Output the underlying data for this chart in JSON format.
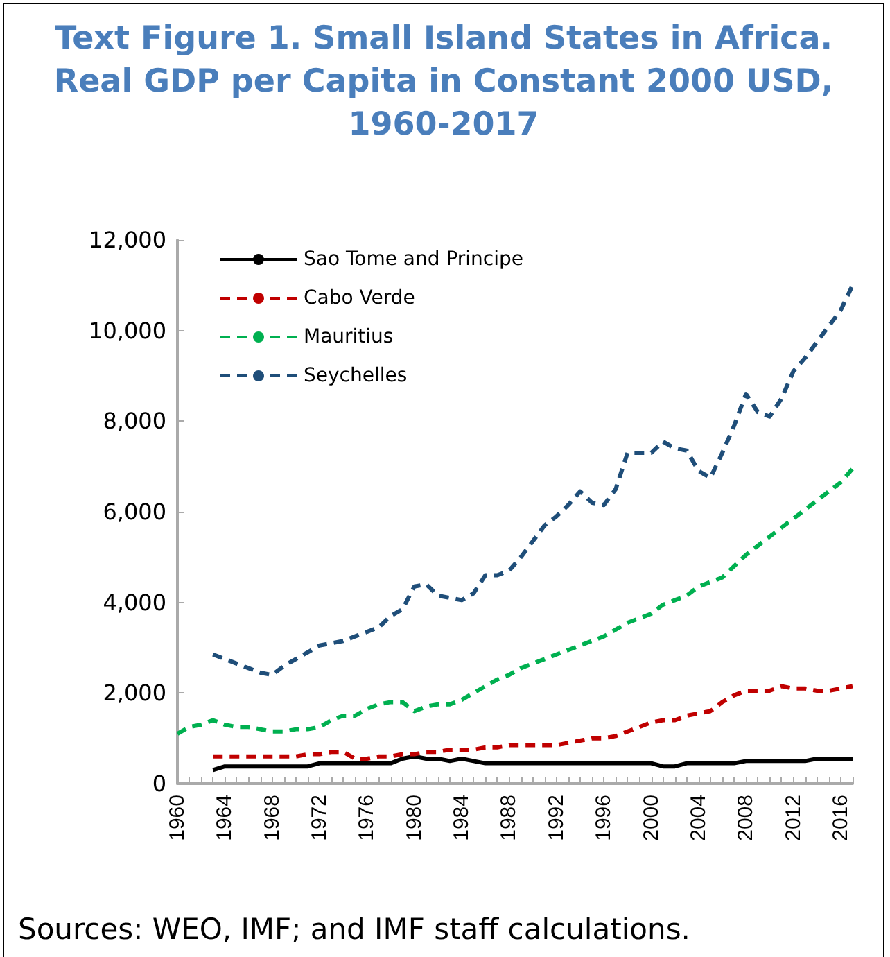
{
  "chart_data": {
    "type": "line",
    "title": "Text Figure 1. Small Island States in Africa. Real GDP per Capita in Constant 2000 USD, 1960-2017",
    "categories": [
      "1960",
      null,
      null,
      null,
      "1964",
      null,
      null,
      null,
      "1968",
      null,
      null,
      null,
      "1972",
      null,
      null,
      null,
      "1976",
      null,
      null,
      null,
      "1980",
      null,
      null,
      null,
      "1984",
      null,
      null,
      null,
      "1988",
      null,
      null,
      null,
      "1992",
      null,
      null,
      null,
      "1996",
      null,
      null,
      null,
      "2000",
      null,
      null,
      null,
      "2004",
      null,
      null,
      null,
      "2008",
      null,
      null,
      null,
      "2012",
      null,
      null,
      null,
      "2016",
      null
    ],
    "series": [
      {
        "name": "Sao Tome and Principe",
        "color": "#000000",
        "line_style": "solid",
        "values": [
          null,
          null,
          null,
          300,
          380,
          380,
          380,
          380,
          380,
          380,
          380,
          380,
          450,
          450,
          450,
          450,
          450,
          450,
          450,
          550,
          600,
          550,
          550,
          500,
          550,
          500,
          450,
          450,
          450,
          450,
          450,
          450,
          450,
          450,
          450,
          450,
          450,
          450,
          450,
          450,
          450,
          380,
          380,
          450,
          450,
          450,
          450,
          450,
          500,
          500,
          500,
          500,
          500,
          500,
          550,
          550,
          550,
          550
        ]
      },
      {
        "name": "Cabo Verde",
        "color": "#c00000",
        "line_style": "dashed",
        "values": [
          null,
          null,
          null,
          600,
          600,
          600,
          600,
          600,
          600,
          600,
          600,
          650,
          650,
          700,
          700,
          550,
          550,
          600,
          600,
          650,
          650,
          700,
          700,
          750,
          750,
          750,
          800,
          800,
          850,
          850,
          850,
          850,
          850,
          900,
          950,
          1000,
          1000,
          1050,
          1150,
          1250,
          1350,
          1400,
          1400,
          1500,
          1550,
          1600,
          1800,
          1950,
          2050,
          2050,
          2050,
          2150,
          2100,
          2100,
          2050,
          2050,
          2100,
          2150
        ]
      },
      {
        "name": "Mauritius",
        "color": "#00b050",
        "line_style": "dashed",
        "values": [
          1100,
          1250,
          1300,
          1400,
          1300,
          1250,
          1250,
          1200,
          1150,
          1150,
          1200,
          1200,
          1250,
          1400,
          1500,
          1500,
          1650,
          1750,
          1800,
          1800,
          1600,
          1700,
          1750,
          1750,
          1850,
          2000,
          2150,
          2300,
          2400,
          2550,
          2650,
          2750,
          2850,
          2950,
          3050,
          3150,
          3250,
          3400,
          3550,
          3650,
          3750,
          3950,
          4050,
          4150,
          4350,
          4450,
          4550,
          4800,
          5050,
          5250,
          5450,
          5650,
          5850,
          6050,
          6250,
          6450,
          6650,
          6950
        ]
      },
      {
        "name": "Seychelles",
        "color": "#1f4e79",
        "line_style": "dashed",
        "values": [
          null,
          null,
          null,
          2850,
          2750,
          2650,
          2550,
          2450,
          2400,
          2600,
          2750,
          2900,
          3050,
          3100,
          3150,
          3250,
          3350,
          3450,
          3700,
          3850,
          4350,
          4400,
          4150,
          4100,
          4050,
          4200,
          4600,
          4600,
          4700,
          5000,
          5350,
          5700,
          5900,
          6150,
          6450,
          6200,
          6150,
          6500,
          7300,
          7300,
          7300,
          7550,
          7400,
          7350,
          6900,
          6750,
          7300,
          7900,
          8600,
          8200,
          8100,
          8500,
          9100,
          9400,
          9750,
          10100,
          10450,
          11000
        ]
      }
    ],
    "ylim": [
      0,
      12000
    ],
    "yticks": [
      0,
      {
        "value": 2000,
        "label": "2,000"
      },
      {
        "value": 4000,
        "label": "4,000"
      },
      {
        "value": 6000,
        "label": "6,000"
      },
      {
        "value": 8000,
        "label": "8,000"
      },
      {
        "value": 10000,
        "label": "10,000"
      },
      {
        "value": 12000,
        "label": "12,000"
      }
    ],
    "grid": false,
    "legend": "top left",
    "marker": "none",
    "annotations": [
      "Sources: WEO, IMF; and IMF staff calculations."
    ]
  }
}
